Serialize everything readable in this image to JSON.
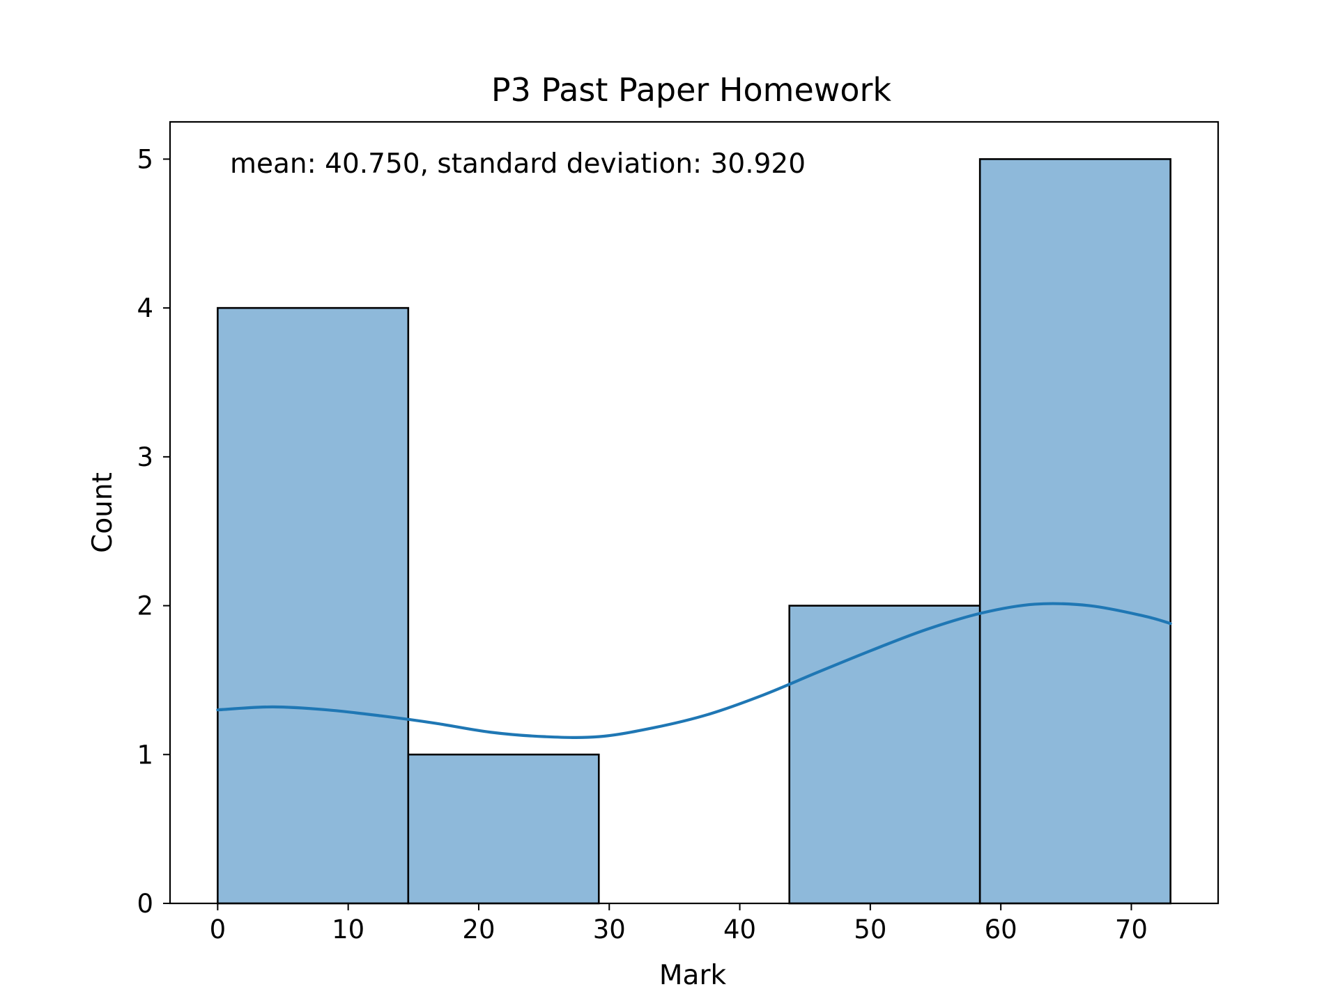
{
  "chart_data": {
    "type": "bar",
    "title": "P3 Past Paper Homework",
    "xlabel": "Mark",
    "ylabel": "Count",
    "annotation": "mean: 40.750, standard deviation: 30.920",
    "bins": [
      {
        "x_start": 0.0,
        "x_end": 14.6,
        "count": 4
      },
      {
        "x_start": 14.6,
        "x_end": 29.2,
        "count": 1
      },
      {
        "x_start": 29.2,
        "x_end": 43.8,
        "count": 0
      },
      {
        "x_start": 43.8,
        "x_end": 58.4,
        "count": 2
      },
      {
        "x_start": 58.4,
        "x_end": 73.0,
        "count": 5
      }
    ],
    "kde": {
      "name": "",
      "x": [
        0,
        4.2,
        8.4,
        12.5,
        16.7,
        20.9,
        25.1,
        29.2,
        33.4,
        37.6,
        41.8,
        45.9,
        50.1,
        54.3,
        58.5,
        62.6,
        66.8,
        71.0,
        73.0
      ],
      "y": [
        1.3,
        1.32,
        1.3,
        1.26,
        1.21,
        1.15,
        1.12,
        1.12,
        1.18,
        1.27,
        1.4,
        1.55,
        1.7,
        1.84,
        1.95,
        2.01,
        2.0,
        1.93,
        1.88
      ]
    },
    "xlim": [
      -3.65,
      76.65
    ],
    "ylim": [
      0,
      5.25
    ],
    "xticks": [
      0,
      10,
      20,
      30,
      40,
      50,
      60,
      70
    ],
    "yticks": [
      0,
      1,
      2,
      3,
      4,
      5
    ],
    "grid": false,
    "colors": {
      "bar_fill": "#8eb9da",
      "bar_edge": "#000000",
      "kde_line": "#1f77b4"
    }
  }
}
